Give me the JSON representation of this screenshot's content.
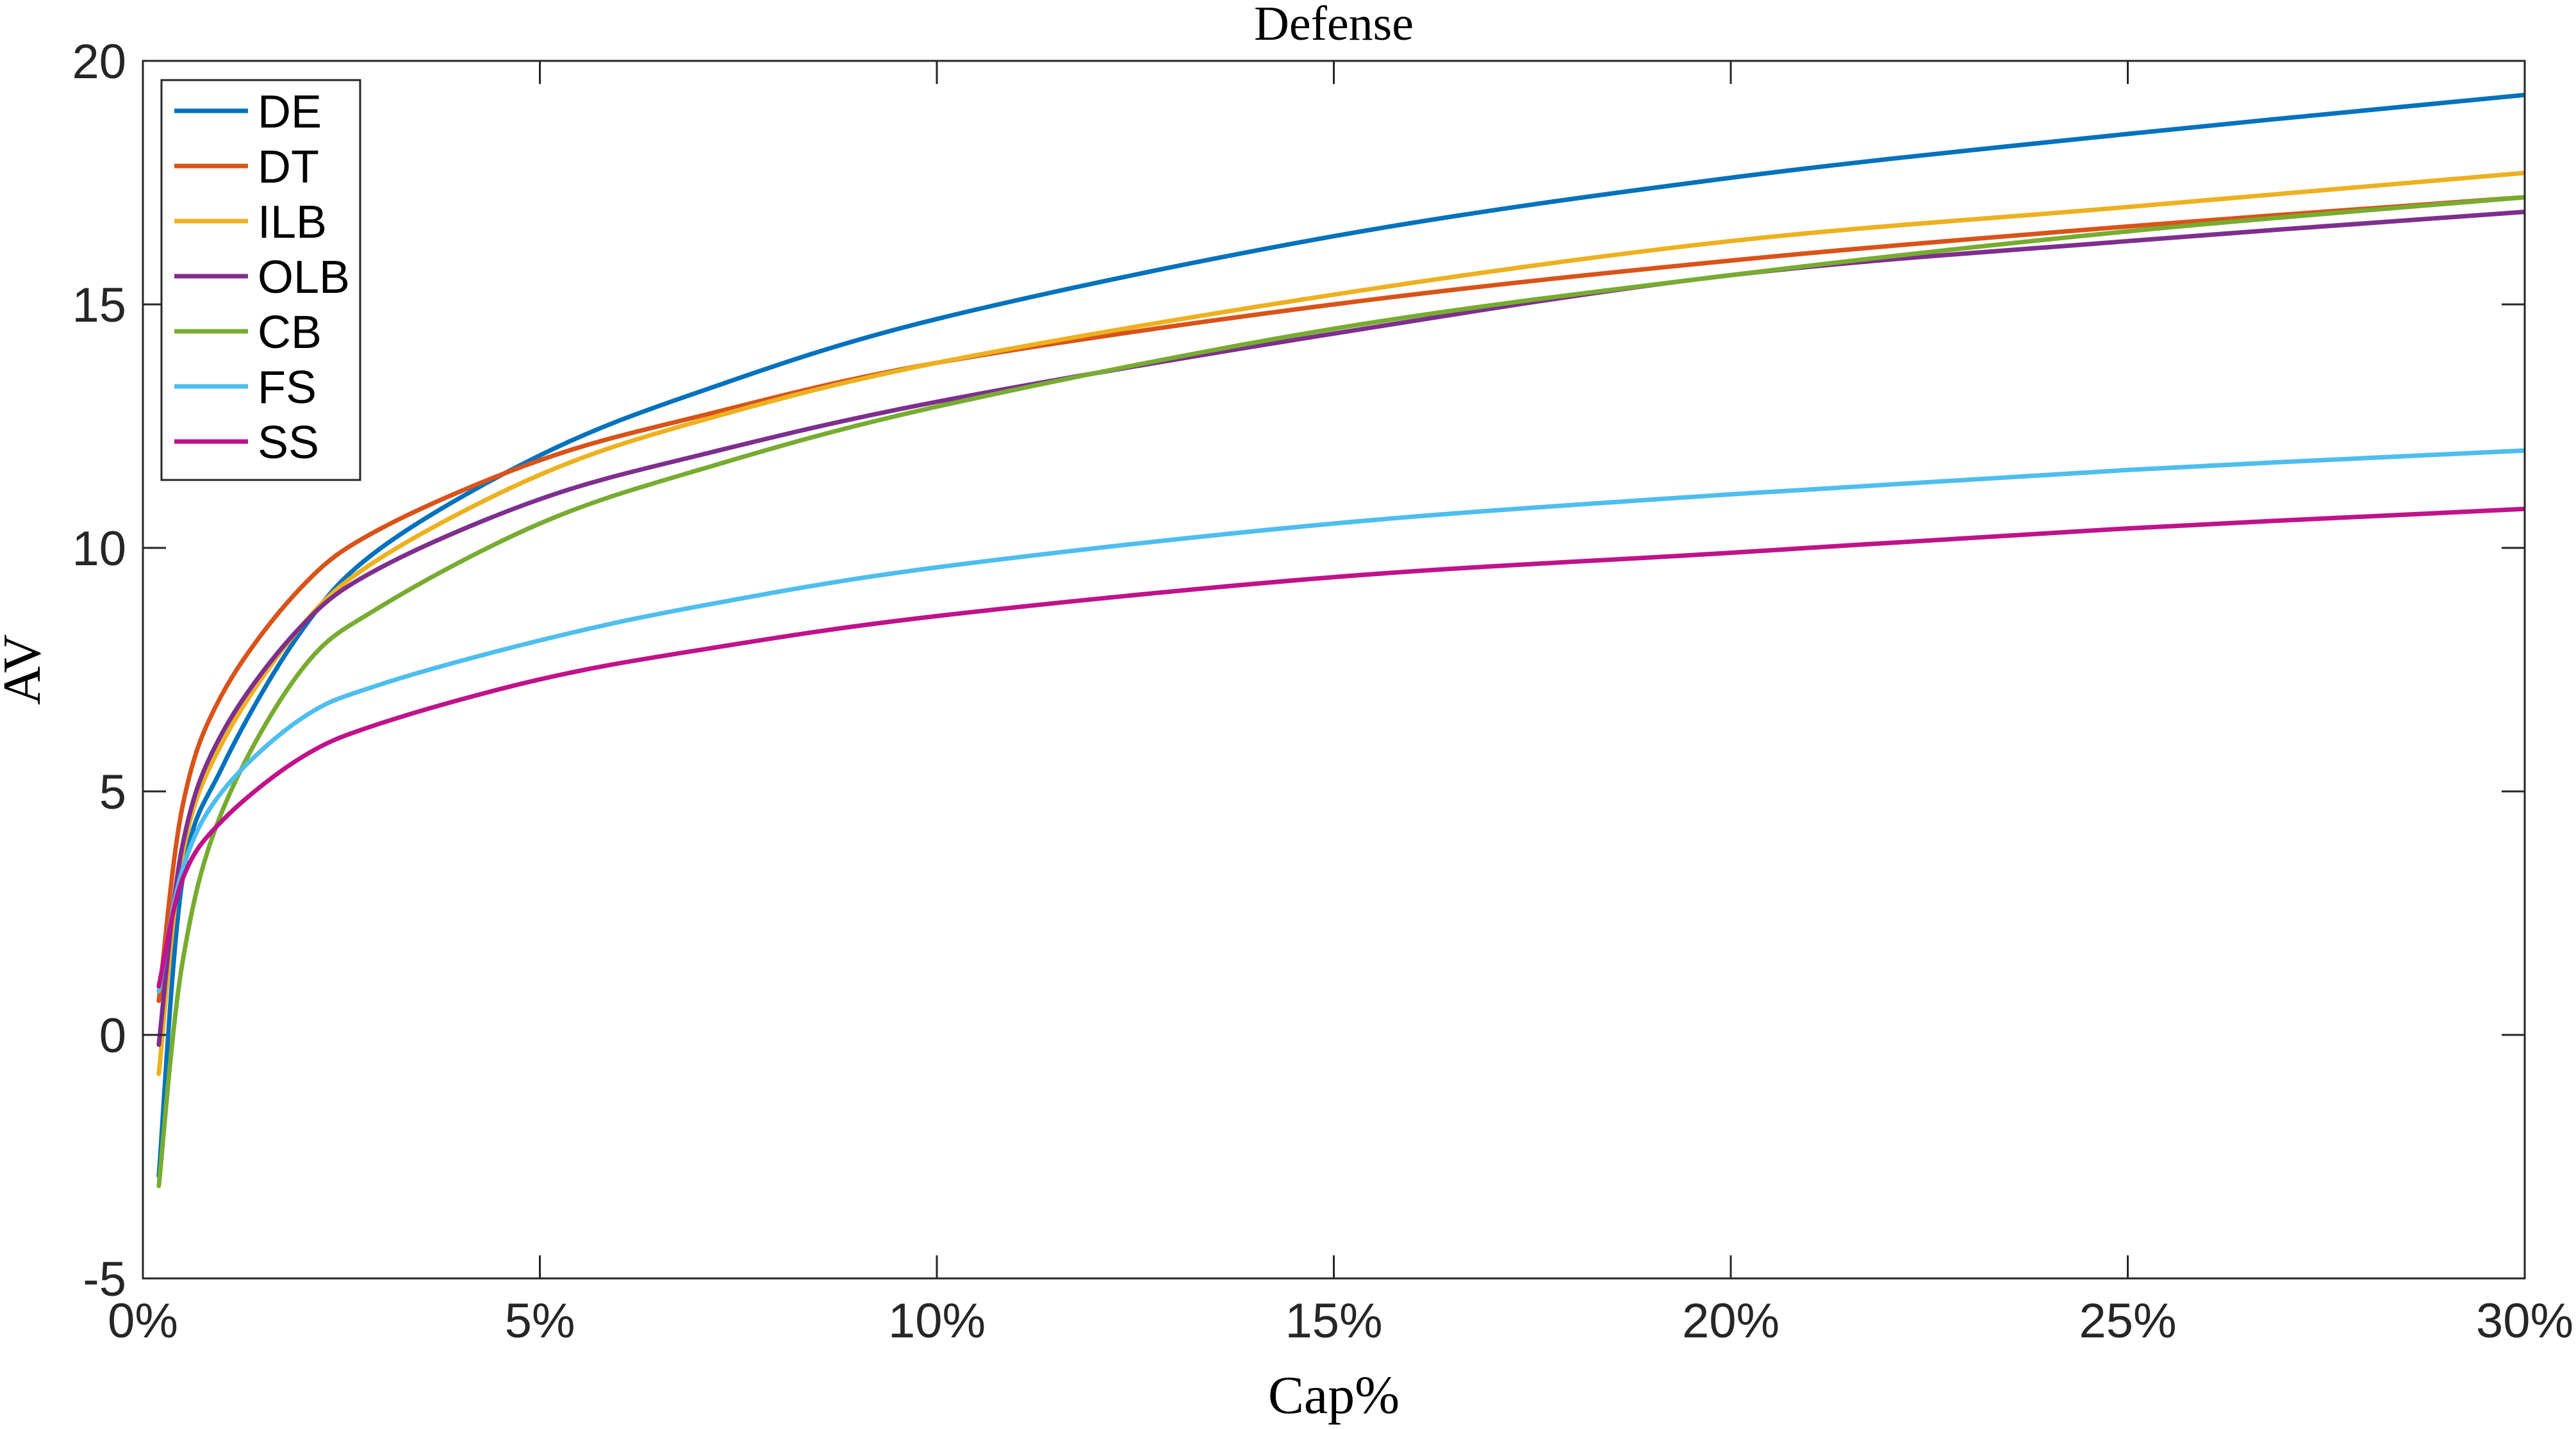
{
  "chart_data": {
    "type": "line",
    "title": "Defense",
    "xlabel": "Cap%",
    "ylabel": "AV",
    "xlim": [
      0,
      30
    ],
    "ylim": [
      -5,
      20
    ],
    "xticks": [
      0,
      5,
      10,
      15,
      20,
      25,
      30
    ],
    "xtick_labels": [
      "0%",
      "5%",
      "10%",
      "15%",
      "20%",
      "25%",
      "30%"
    ],
    "yticks": [
      -5,
      0,
      5,
      10,
      15,
      20
    ],
    "ytick_labels": [
      "-5",
      "0",
      "5",
      "10",
      "15",
      "20"
    ],
    "grid": false,
    "legend": "top-left",
    "x": [
      0.2,
      0.5,
      1,
      2,
      3,
      5,
      7,
      10,
      15,
      20,
      25,
      30
    ],
    "series": [
      {
        "name": "DE",
        "color": "#0072BD",
        "values": [
          -2.9,
          3.2,
          5.5,
          8.3,
          10.0,
          11.9,
          13.2,
          14.7,
          16.4,
          17.6,
          18.5,
          19.3
        ]
      },
      {
        "name": "DT",
        "color": "#D95319",
        "values": [
          0.7,
          4.7,
          7.0,
          9.2,
          10.4,
          11.8,
          12.7,
          13.8,
          15.0,
          15.9,
          16.6,
          17.2
        ]
      },
      {
        "name": "ILB",
        "color": "#EDB120",
        "values": [
          -0.8,
          3.7,
          6.0,
          8.4,
          9.8,
          11.5,
          12.6,
          13.8,
          15.2,
          16.3,
          17.0,
          17.7
        ]
      },
      {
        "name": "OLB",
        "color": "#7E2F8E",
        "values": [
          -0.2,
          3.9,
          6.2,
          8.4,
          9.6,
          11.0,
          11.9,
          13.0,
          14.4,
          15.6,
          16.3,
          16.9
        ]
      },
      {
        "name": "CB",
        "color": "#77AC30",
        "values": [
          -3.1,
          1.5,
          4.6,
          7.5,
          8.8,
          10.5,
          11.6,
          12.9,
          14.5,
          15.6,
          16.5,
          17.2
        ]
      },
      {
        "name": "FS",
        "color": "#4DBEEE",
        "values": [
          0.9,
          3.4,
          5.0,
          6.5,
          7.2,
          8.1,
          8.8,
          9.6,
          10.5,
          11.1,
          11.6,
          12.0
        ]
      },
      {
        "name": "SS",
        "color": "#C0128A",
        "values": [
          1.0,
          3.2,
          4.4,
          5.7,
          6.4,
          7.3,
          7.9,
          8.6,
          9.4,
          9.9,
          10.4,
          10.8
        ]
      }
    ]
  }
}
